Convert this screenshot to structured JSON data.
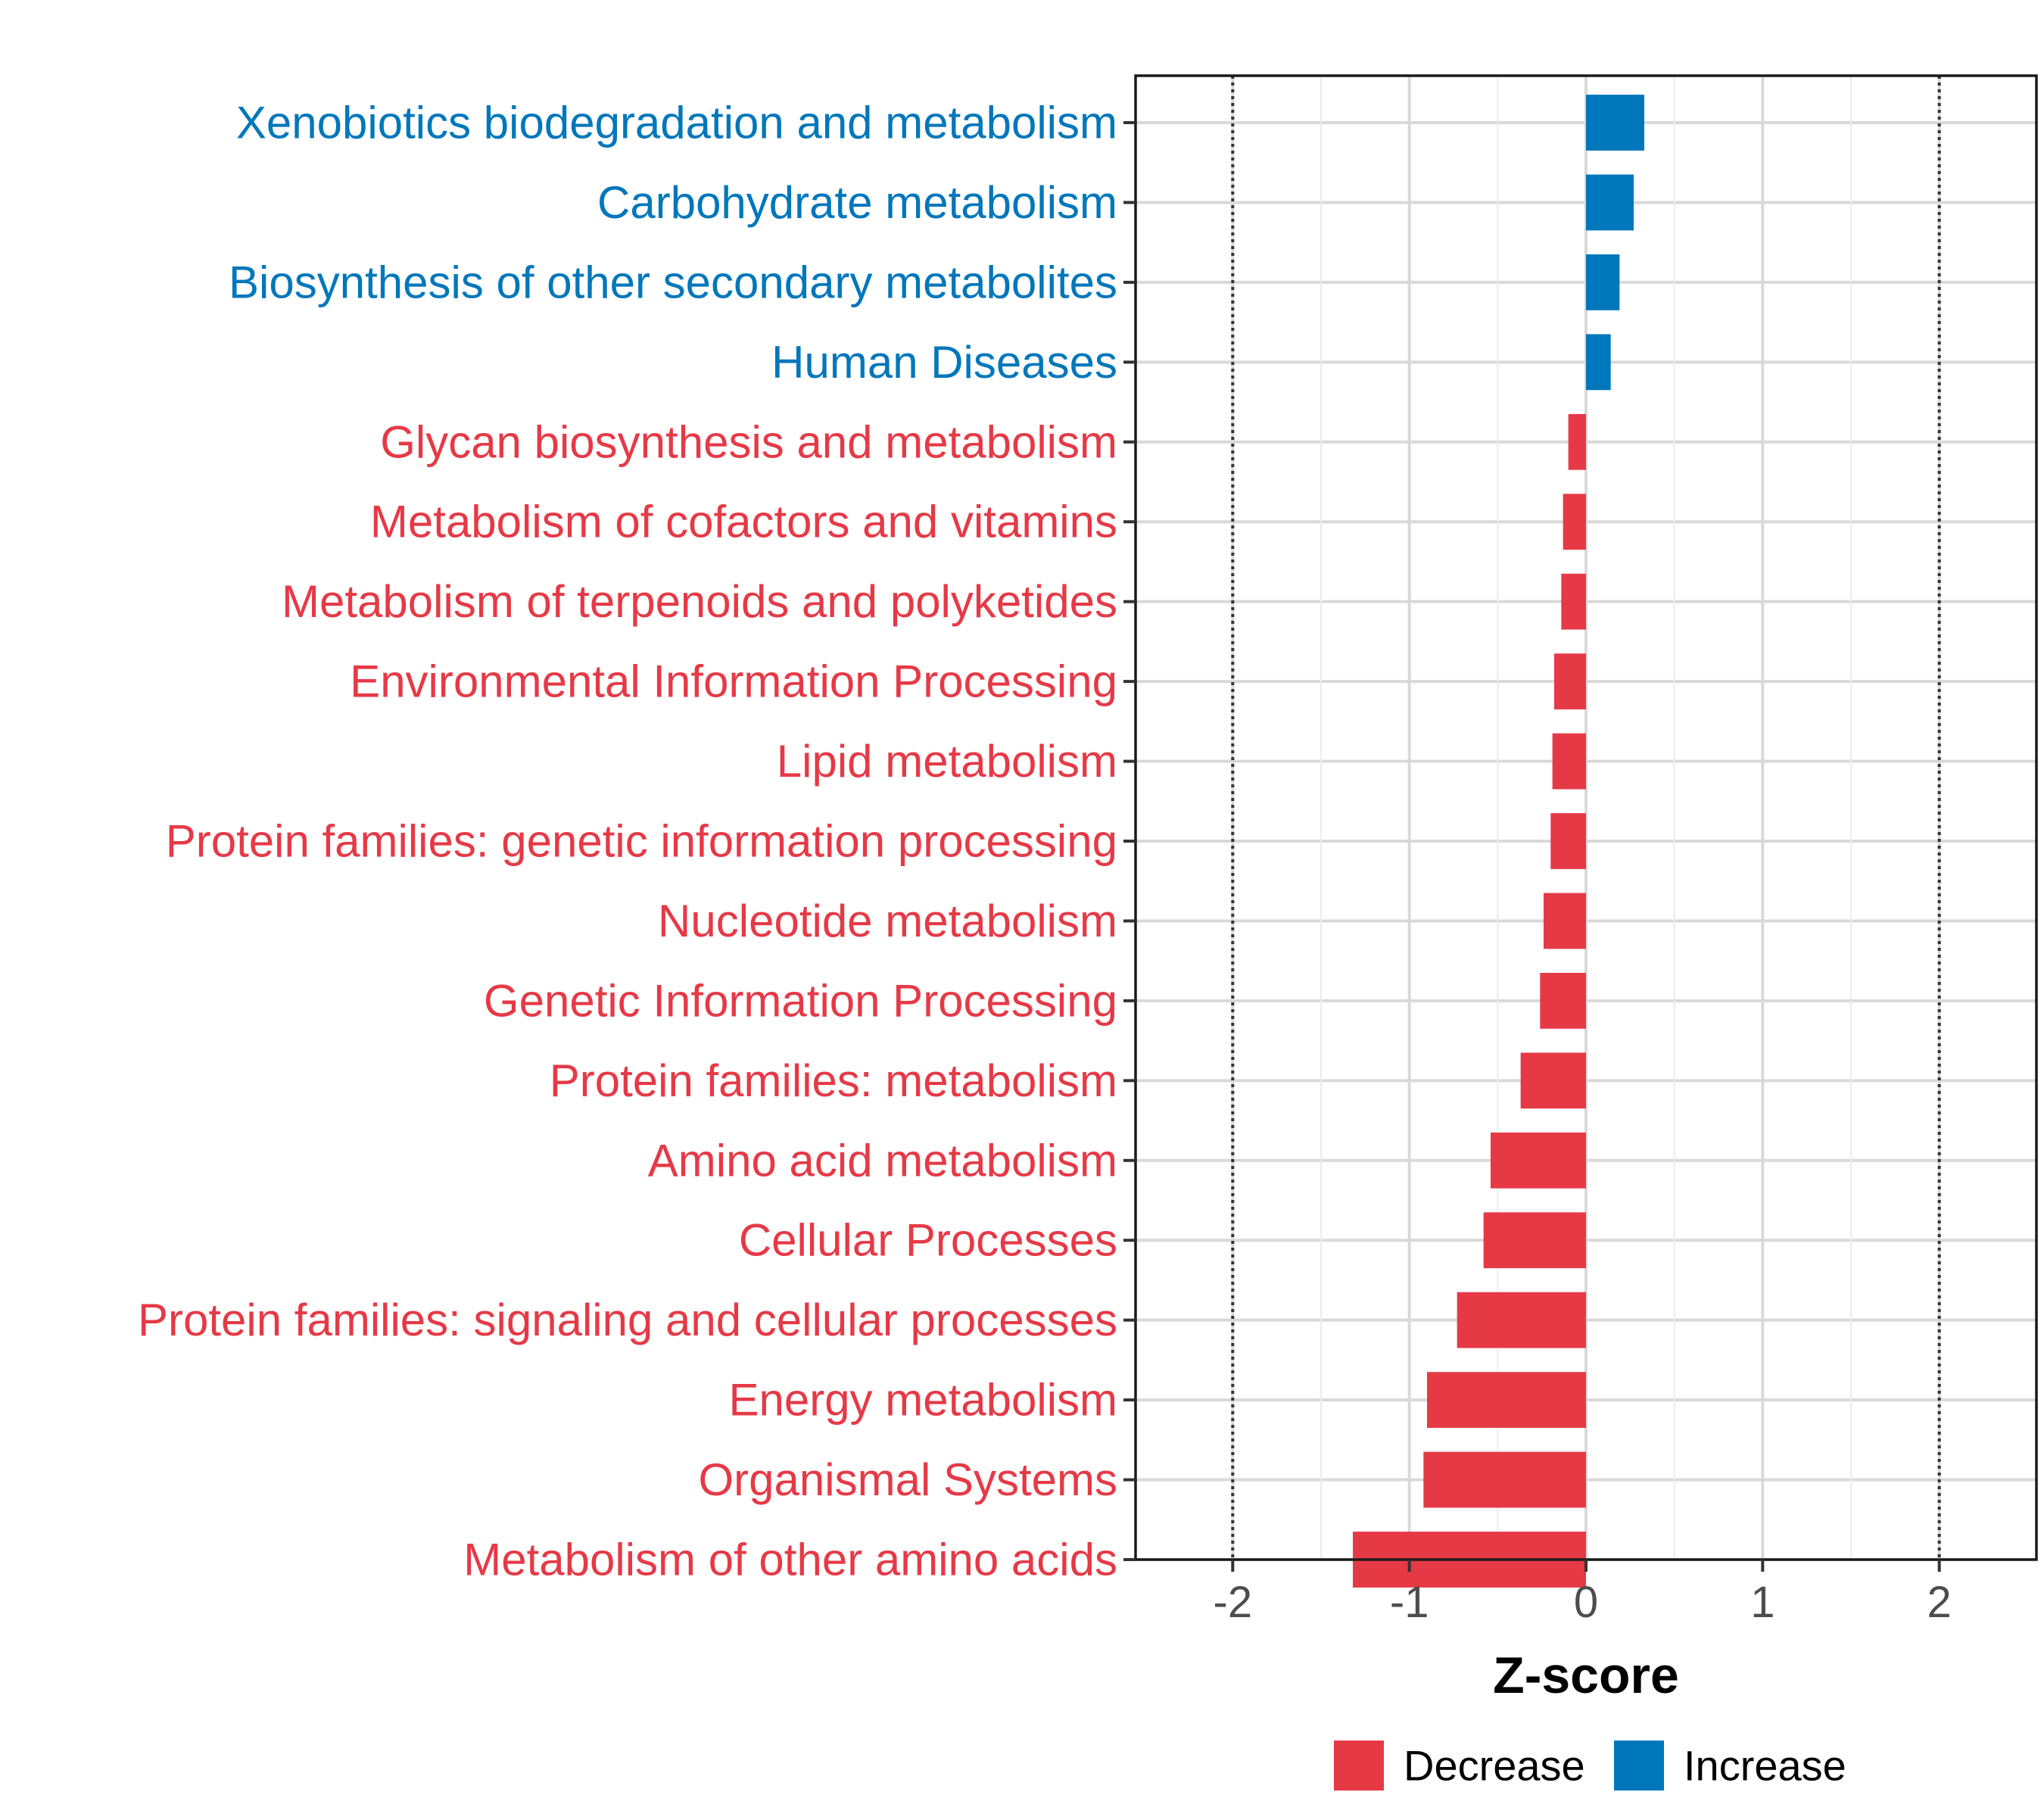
{
  "chart_data": {
    "type": "bar",
    "orientation": "horizontal",
    "title": "",
    "xlabel": "Z-score",
    "ylabel": "",
    "xlim": [
      -2.55,
      2.55
    ],
    "xticks": [
      -2,
      -1,
      0,
      1,
      2
    ],
    "xtick_labels": [
      "-2",
      "-1",
      "0",
      "1",
      "2"
    ],
    "reference_lines": [
      -2,
      2
    ],
    "grid": true,
    "legend_position": "bottom",
    "colors": {
      "Decrease": "#E63946",
      "Increase": "#0077BB"
    },
    "legend": [
      {
        "name": "Decrease",
        "color": "#E63946"
      },
      {
        "name": "Increase",
        "color": "#0077BB"
      }
    ],
    "categories": [
      "Xenobiotics biodegradation and metabolism",
      "Carbohydrate metabolism",
      "Biosynthesis of other secondary metabolites",
      "Human Diseases",
      "Glycan biosynthesis and metabolism",
      "Metabolism of cofactors and vitamins",
      "Metabolism of terpenoids and polyketides",
      "Environmental Information Processing",
      "Lipid metabolism",
      "Protein families: genetic information processing",
      "Nucleotide metabolism",
      "Genetic Information Processing",
      "Protein families: metabolism",
      "Amino acid metabolism",
      "Cellular Processes",
      "Protein families: signaling and cellular processes",
      "Energy metabolism",
      "Organismal Systems",
      "Metabolism of other amino acids"
    ],
    "values": [
      0.33,
      0.27,
      0.19,
      0.14,
      -0.1,
      -0.13,
      -0.14,
      -0.18,
      -0.19,
      -0.2,
      -0.24,
      -0.26,
      -0.37,
      -0.54,
      -0.58,
      -0.73,
      -0.9,
      -0.92,
      -1.32
    ],
    "groups": [
      "Increase",
      "Increase",
      "Increase",
      "Increase",
      "Decrease",
      "Decrease",
      "Decrease",
      "Decrease",
      "Decrease",
      "Decrease",
      "Decrease",
      "Decrease",
      "Decrease",
      "Decrease",
      "Decrease",
      "Decrease",
      "Decrease",
      "Decrease",
      "Decrease"
    ]
  }
}
